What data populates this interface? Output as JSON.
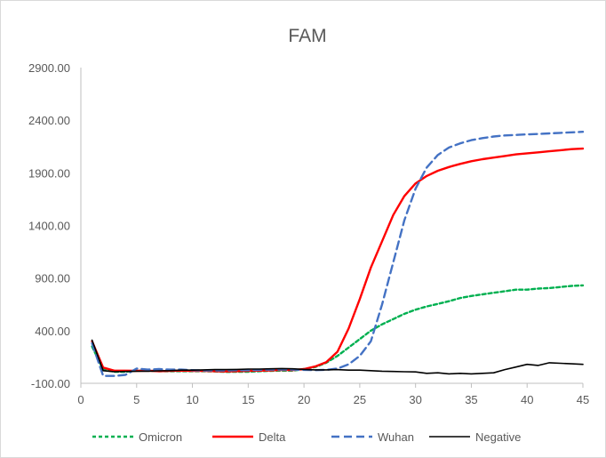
{
  "chart_data": {
    "type": "line",
    "title": "FAM",
    "xlabel": "",
    "ylabel": "",
    "xlim": [
      0,
      45
    ],
    "ylim": [
      -100,
      2900
    ],
    "x_ticks": [
      0,
      5,
      10,
      15,
      20,
      25,
      30,
      35,
      40,
      45
    ],
    "y_ticks": [
      -100,
      400,
      900,
      1400,
      1900,
      2400,
      2900
    ],
    "x_tick_labels": [
      "0",
      "5",
      "10",
      "15",
      "20",
      "25",
      "30",
      "35",
      "40",
      "45"
    ],
    "y_tick_labels": [
      "-100.00",
      "400.00",
      "900.00",
      "1400.00",
      "1900.00",
      "2400.00",
      "2900.00"
    ],
    "grid": false,
    "legend_position": "bottom",
    "x": [
      1,
      2,
      3,
      4,
      5,
      6,
      7,
      8,
      9,
      10,
      11,
      12,
      13,
      14,
      15,
      16,
      17,
      18,
      19,
      20,
      21,
      22,
      23,
      24,
      25,
      26,
      27,
      28,
      29,
      30,
      31,
      32,
      33,
      34,
      35,
      36,
      37,
      38,
      39,
      40,
      41,
      42,
      43,
      44,
      45
    ],
    "series": [
      {
        "name": "Omicron",
        "color": "#00b050",
        "dash": "dotted",
        "values": [
          250,
          30,
          10,
          10,
          20,
          20,
          15,
          15,
          15,
          15,
          15,
          12,
          8,
          10,
          10,
          15,
          18,
          20,
          20,
          35,
          55,
          95,
          160,
          240,
          320,
          400,
          460,
          510,
          560,
          600,
          630,
          655,
          680,
          710,
          730,
          745,
          760,
          775,
          790,
          790,
          800,
          805,
          815,
          825,
          830
        ]
      },
      {
        "name": "Delta",
        "color": "#ff0000",
        "dash": "solid",
        "values": [
          300,
          50,
          20,
          20,
          18,
          20,
          15,
          18,
          20,
          18,
          18,
          15,
          12,
          15,
          18,
          20,
          22,
          28,
          25,
          35,
          60,
          100,
          200,
          420,
          700,
          1000,
          1250,
          1500,
          1680,
          1800,
          1870,
          1920,
          1955,
          1985,
          2010,
          2030,
          2045,
          2060,
          2075,
          2085,
          2095,
          2105,
          2115,
          2125,
          2130
        ]
      },
      {
        "name": "Wuhan",
        "color": "#4472c4",
        "dash": "dashed",
        "values": [
          280,
          -30,
          -30,
          -20,
          40,
          30,
          35,
          30,
          30,
          25,
          22,
          22,
          22,
          25,
          25,
          28,
          30,
          30,
          30,
          28,
          25,
          28,
          40,
          80,
          160,
          300,
          650,
          1050,
          1450,
          1750,
          1950,
          2070,
          2140,
          2180,
          2210,
          2230,
          2245,
          2255,
          2260,
          2265,
          2270,
          2275,
          2280,
          2285,
          2290
        ]
      },
      {
        "name": "Negative",
        "color": "#000000",
        "dash": "solid",
        "values": [
          310,
          20,
          10,
          12,
          15,
          15,
          18,
          20,
          25,
          25,
          28,
          30,
          30,
          32,
          35,
          35,
          38,
          40,
          38,
          32,
          28,
          28,
          30,
          25,
          25,
          20,
          15,
          12,
          10,
          8,
          -5,
          0,
          -10,
          -5,
          -10,
          -5,
          0,
          30,
          55,
          80,
          70,
          95,
          90,
          85,
          80
        ]
      }
    ]
  }
}
